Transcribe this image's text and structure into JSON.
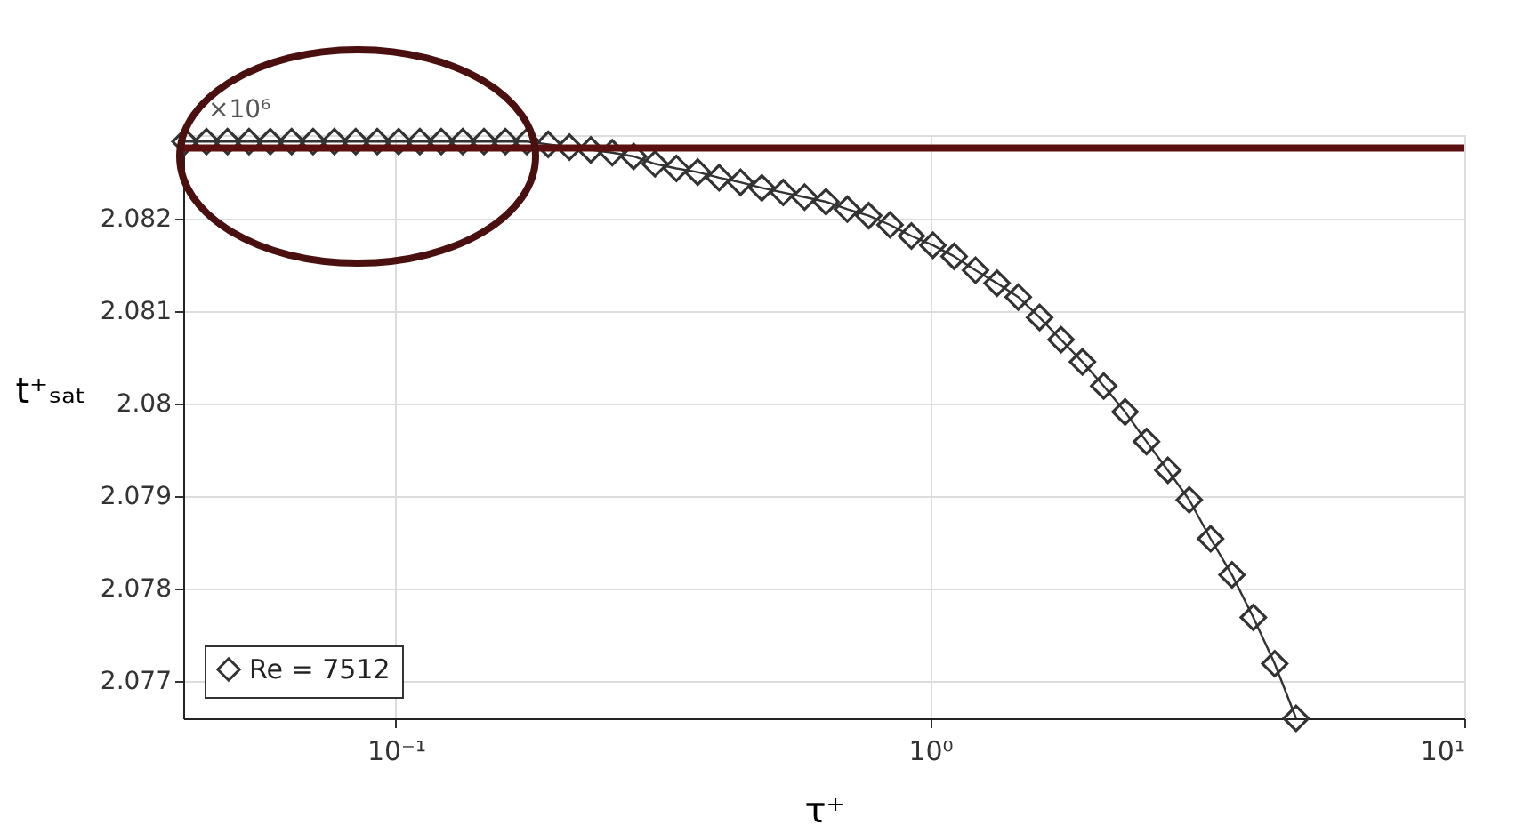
{
  "chart_data": {
    "type": "line",
    "xlabel": "τ⁺",
    "ylabel": "t⁺ₛₐₜ",
    "annotations": [
      "×10⁶"
    ],
    "log": "x",
    "grid": true,
    "legend": "bottom left",
    "marker": "diamond",
    "line_style": "solid",
    "xlim": [
      0.04,
      10
    ],
    "xticks": [
      {
        "value": 0.1,
        "label": "10⁻¹"
      },
      {
        "value": 1,
        "label": "10⁰"
      },
      {
        "value": 10,
        "label": "10¹"
      }
    ],
    "ylim": [
      2.0766,
      2.0829
    ],
    "yticks": [
      2.077,
      2.078,
      2.079,
      2.08,
      2.081,
      2.082
    ],
    "ref_lines": [
      {
        "axis": "y",
        "value": 2.08276,
        "color": "#5a1010"
      }
    ],
    "series": [
      {
        "name": "Re = 7512",
        "color": "#333333",
        "x": [
          0.0403,
          0.0442,
          0.0484,
          0.0531,
          0.0582,
          0.0638,
          0.07,
          0.0767,
          0.0841,
          0.0923,
          0.1012,
          0.1109,
          0.1216,
          0.1334,
          0.1462,
          0.1603,
          0.1758,
          0.1928,
          0.2113,
          0.2317,
          0.2541,
          0.2786,
          0.3055,
          0.335,
          0.3673,
          0.4027,
          0.4416,
          0.4842,
          0.5309,
          0.5821,
          0.6383,
          0.6998,
          0.7674,
          0.8414,
          0.9226,
          1.012,
          1.109,
          1.216,
          1.334,
          1.462,
          1.603,
          1.758,
          1.928,
          2.113,
          2.317,
          2.541,
          2.786,
          3.055,
          3.35,
          3.673,
          4.027,
          4.416,
          4.842
        ],
        "values": [
          2.08283,
          2.08283,
          2.08283,
          2.08283,
          2.08283,
          2.08283,
          2.08283,
          2.08283,
          2.08283,
          2.08283,
          2.08283,
          2.08283,
          2.08283,
          2.08283,
          2.08283,
          2.08283,
          2.08283,
          2.0828,
          2.08277,
          2.08274,
          2.08271,
          2.08267,
          2.08259,
          2.08254,
          2.0825,
          2.08244,
          2.08239,
          2.08233,
          2.08228,
          2.08223,
          2.08218,
          2.0821,
          2.08203,
          2.08193,
          2.08181,
          2.08171,
          2.08159,
          2.08144,
          2.0813,
          2.08115,
          2.08093,
          2.08069,
          2.08045,
          2.08019,
          2.07991,
          2.07959,
          2.07928,
          2.07896,
          2.07854,
          2.07815,
          2.07769,
          2.07719,
          2.0766
        ]
      }
    ]
  }
}
